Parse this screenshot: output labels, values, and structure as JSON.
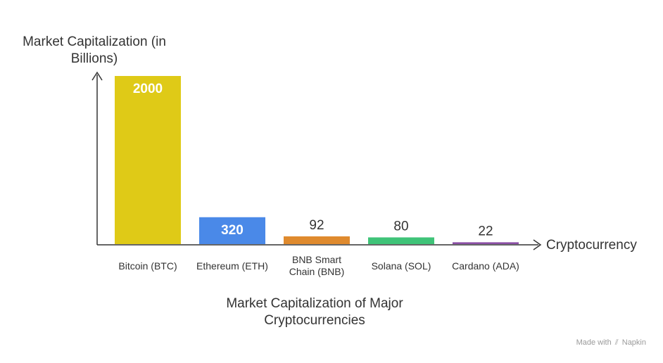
{
  "chart_data": {
    "type": "bar",
    "title": "Market Capitalization of Major Cryptocurrencies",
    "xlabel": "Cryptocurrency",
    "ylabel": "Market Capitalization (in Billions)",
    "categories": [
      "Bitcoin (BTC)",
      "Ethereum (ETH)",
      "BNB Smart Chain (BNB)",
      "Solana (SOL)",
      "Cardano (ADA)"
    ],
    "category_lines": [
      [
        "Bitcoin (BTC)"
      ],
      [
        "Ethereum (ETH)"
      ],
      [
        "BNB Smart",
        "Chain (BNB)"
      ],
      [
        "Solana (SOL)"
      ],
      [
        "Cardano (ADA)"
      ]
    ],
    "values": [
      2000,
      320,
      92,
      80,
      22
    ],
    "value_labels": [
      "2000",
      "320",
      "92",
      "80",
      "22"
    ],
    "colors": [
      "#dfca17",
      "#4a89e8",
      "#df8a2e",
      "#3fc378",
      "#8b4fa5"
    ],
    "ylim": [
      0,
      2000
    ],
    "grid": false,
    "legend": "none"
  },
  "watermark": {
    "prefix": "Made with",
    "icon": "napkin-logo-icon",
    "brand": "Napkin"
  }
}
